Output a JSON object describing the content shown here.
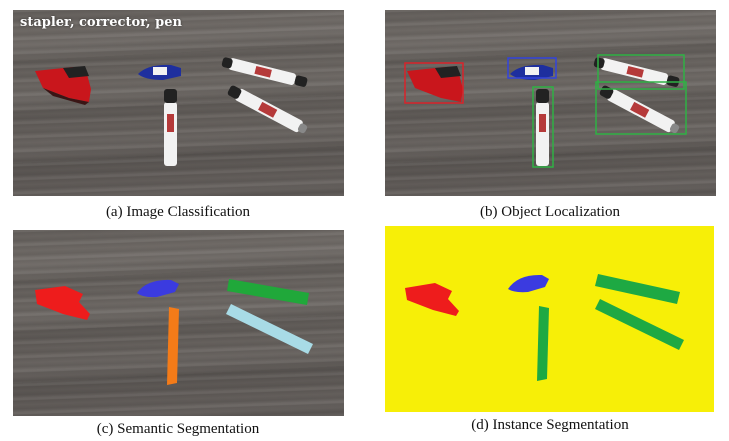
{
  "panels": {
    "a": {
      "caption": "(a) Image Classification",
      "label": "stapler, corrector, pen"
    },
    "b": {
      "caption": "(b) Object Localization"
    },
    "c": {
      "caption": "(c) Semantic Segmentation"
    },
    "d": {
      "caption": "(d) Instance Segmentation"
    }
  },
  "colors": {
    "stapler": "#ee1c1c",
    "corrector": "#3b3be0",
    "pen_semantic_1": "#20a83a",
    "pen_semantic_2": "#a8dbe6",
    "pen_semantic_3": "#f47b18",
    "instance_pen": "#1ea943",
    "instance_bg": "#f7ef07",
    "box_stapler": "#d9232a",
    "box_corrector": "#3344dd",
    "box_pen": "#2fb144"
  }
}
